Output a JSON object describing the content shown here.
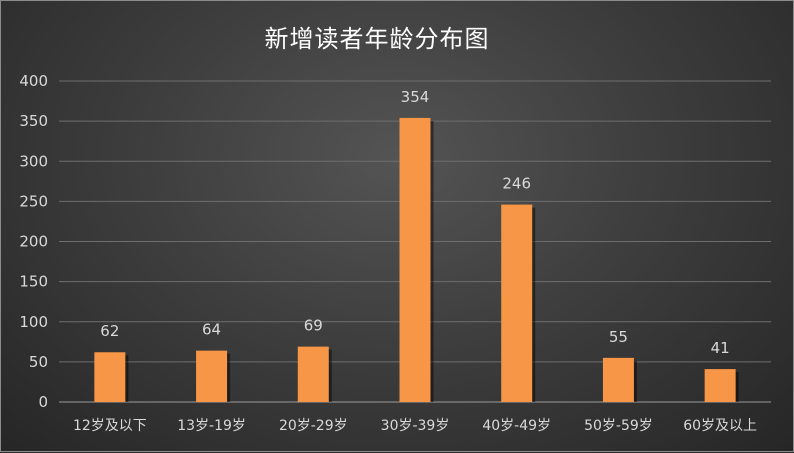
{
  "chart_data": {
    "type": "bar",
    "title": "新增读者年龄分布图",
    "xlabel": "",
    "ylabel": "",
    "categories": [
      "12岁及以下",
      "13岁-19岁",
      "20岁-29岁",
      "30岁-39岁",
      "40岁-49岁",
      "50岁-59岁",
      "60岁及以上"
    ],
    "values": [
      62,
      64,
      69,
      354,
      246,
      55,
      41
    ],
    "ylim": [
      0,
      400
    ],
    "yticks": [
      0,
      50,
      100,
      150,
      200,
      250,
      300,
      350,
      400
    ],
    "grid": true,
    "legend": "none",
    "colors": {
      "bar": "#f79646",
      "text": "#d9d9d9",
      "title": "#ffffff"
    }
  }
}
